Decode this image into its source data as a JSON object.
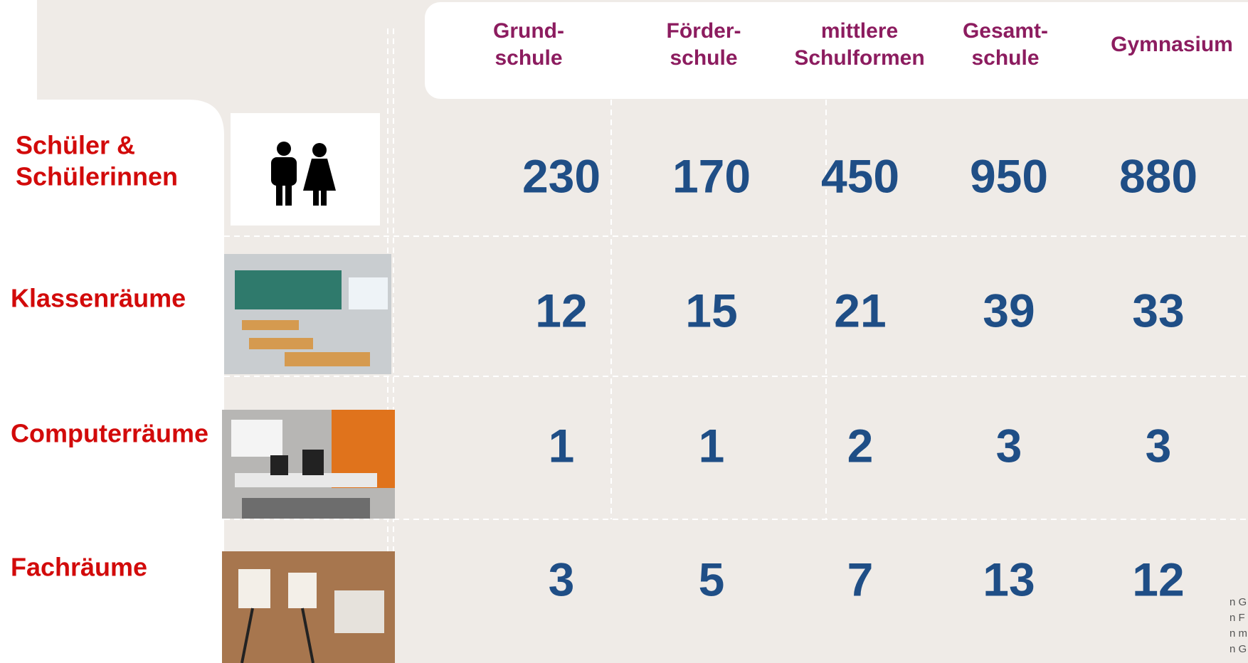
{
  "columns": [
    {
      "lines": [
        "Grund-",
        "schule"
      ]
    },
    {
      "lines": [
        "Förder-",
        "schule"
      ]
    },
    {
      "lines": [
        "mittlere",
        "Schulformen"
      ]
    },
    {
      "lines": [
        "Gesamt-",
        "schule"
      ]
    },
    {
      "lines": [
        "Gymnasium"
      ]
    }
  ],
  "rows": [
    {
      "label_lines": [
        "Schüler &",
        "Schülerinnen"
      ],
      "values": [
        230,
        170,
        450,
        950,
        880
      ]
    },
    {
      "label_lines": [
        "Klassenräume"
      ],
      "values": [
        12,
        15,
        21,
        39,
        33
      ]
    },
    {
      "label_lines": [
        "Computerräume"
      ],
      "values": [
        1,
        1,
        2,
        3,
        3
      ]
    },
    {
      "label_lines": [
        "Fachräume"
      ],
      "values": [
        3,
        5,
        7,
        13,
        12
      ]
    }
  ],
  "side_fragments": [
    "n G",
    "n F",
    "n m",
    "n G"
  ]
}
